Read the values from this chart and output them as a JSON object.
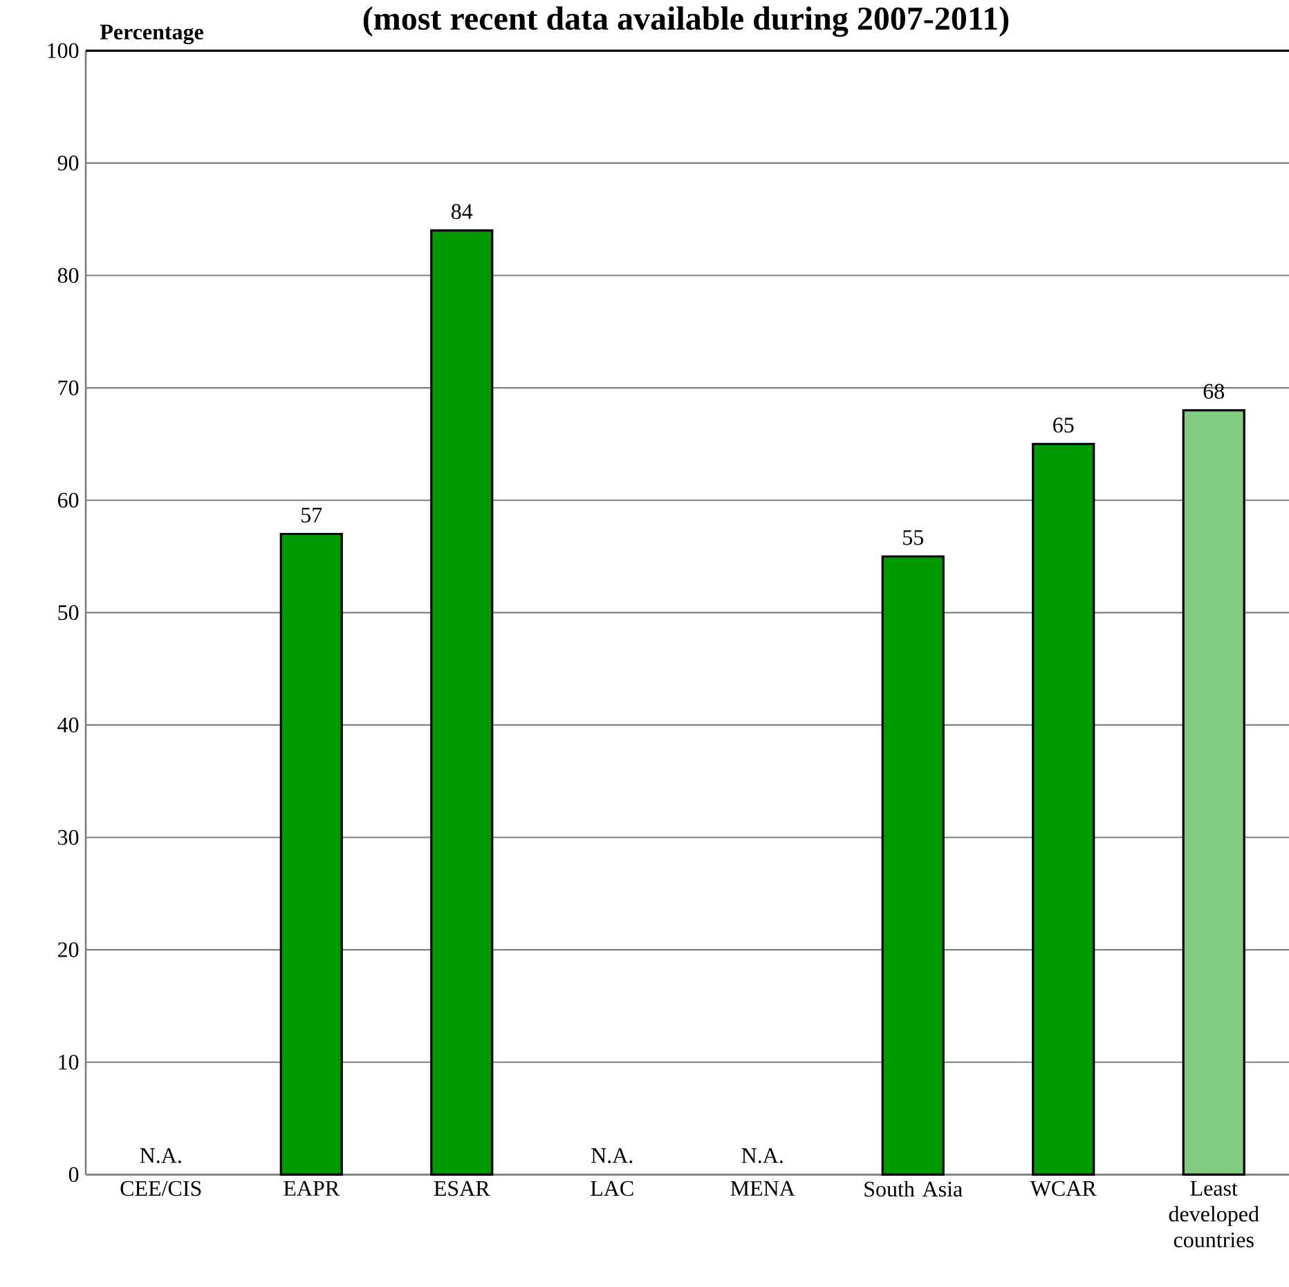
{
  "chart_data": {
    "type": "bar",
    "title": "(most recent data available during 2007-2011)",
    "ylabel": "Percentage",
    "categories": [
      "CEE/CIS",
      "EAPR",
      "ESAR",
      "LAC",
      "MENA",
      "South Asia",
      "WCAR",
      "Least developed countries"
    ],
    "values": [
      null,
      57,
      84,
      null,
      null,
      55,
      65,
      68
    ],
    "value_labels": [
      "N.A.",
      "57",
      "84",
      "N.A.",
      "N.A.",
      "55",
      "65",
      "68"
    ],
    "colors": [
      "#009900",
      "#009900",
      "#009900",
      "#009900",
      "#009900",
      "#009900",
      "#009900",
      "#80cc80"
    ],
    "ylim": [
      0,
      100
    ],
    "yticks": [
      0,
      10,
      20,
      30,
      40,
      50,
      60,
      70,
      80,
      90,
      100
    ],
    "grid": "y"
  }
}
